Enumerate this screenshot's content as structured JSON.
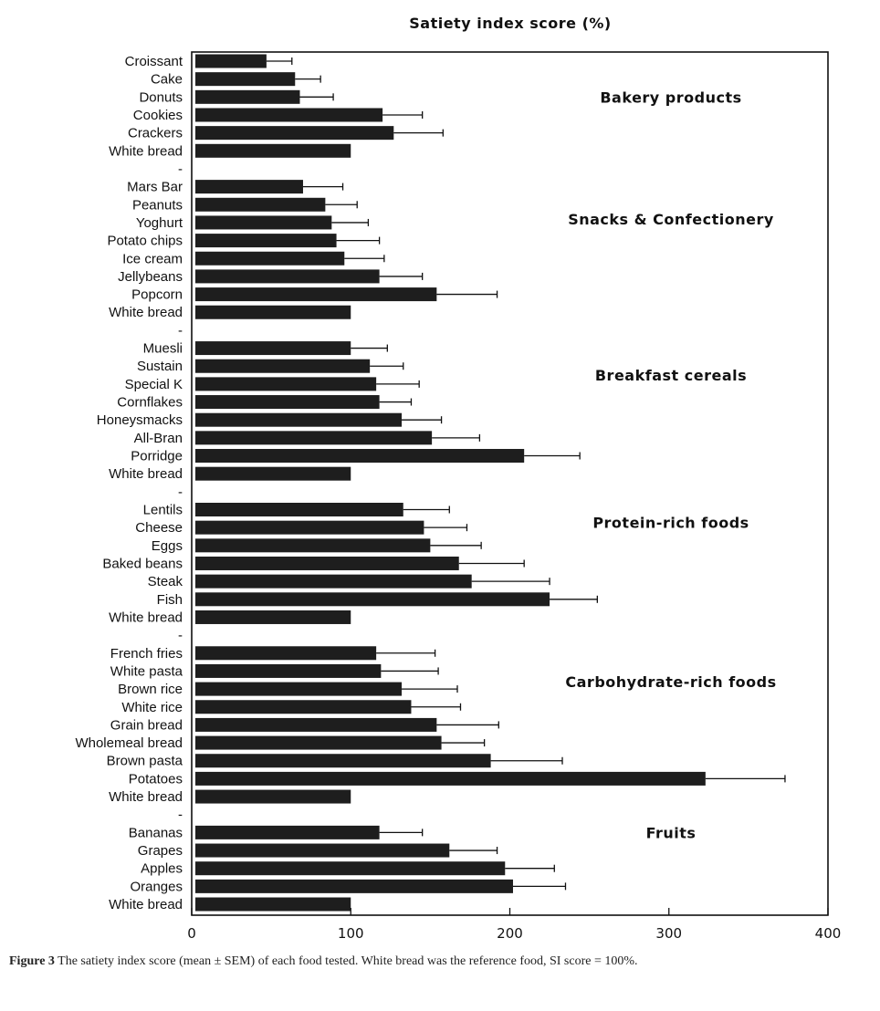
{
  "chart_data": {
    "type": "bar",
    "orientation": "horizontal",
    "title": "Satiety index score (%)",
    "xlim": [
      0,
      400
    ],
    "xticks": [
      "0",
      "100",
      "200",
      "300",
      "400"
    ],
    "grid": false,
    "error_bars": "mean ± SEM (one-sided, right)",
    "bar_color": "#1e1e1e",
    "groups": [
      {
        "name": "Bakery products",
        "items": [
          {
            "label": "Croissant",
            "value": 47,
            "sem": 16
          },
          {
            "label": "Cake",
            "value": 65,
            "sem": 16
          },
          {
            "label": "Donuts",
            "value": 68,
            "sem": 21
          },
          {
            "label": "Cookies",
            "value": 120,
            "sem": 25
          },
          {
            "label": "Crackers",
            "value": 127,
            "sem": 31
          },
          {
            "label": "White bread",
            "value": 100,
            "sem": 0
          }
        ]
      },
      {
        "name": "Snacks & Confectionery",
        "items": [
          {
            "label": "Mars Bar",
            "value": 70,
            "sem": 25
          },
          {
            "label": "Peanuts",
            "value": 84,
            "sem": 20
          },
          {
            "label": "Yoghurt",
            "value": 88,
            "sem": 23
          },
          {
            "label": "Potato chips",
            "value": 91,
            "sem": 27
          },
          {
            "label": "Ice cream",
            "value": 96,
            "sem": 25
          },
          {
            "label": "Jellybeans",
            "value": 118,
            "sem": 27
          },
          {
            "label": "Popcorn",
            "value": 154,
            "sem": 38
          },
          {
            "label": "White bread",
            "value": 100,
            "sem": 0
          }
        ]
      },
      {
        "name": "Breakfast cereals",
        "items": [
          {
            "label": "Muesli",
            "value": 100,
            "sem": 23
          },
          {
            "label": "Sustain",
            "value": 112,
            "sem": 21
          },
          {
            "label": "Special K",
            "value": 116,
            "sem": 27
          },
          {
            "label": "Cornflakes",
            "value": 118,
            "sem": 20
          },
          {
            "label": "Honeysmacks",
            "value": 132,
            "sem": 25
          },
          {
            "label": "All-Bran",
            "value": 151,
            "sem": 30
          },
          {
            "label": "Porridge",
            "value": 209,
            "sem": 35
          },
          {
            "label": "White bread",
            "value": 100,
            "sem": 0
          }
        ]
      },
      {
        "name": "Protein-rich foods",
        "items": [
          {
            "label": "Lentils",
            "value": 133,
            "sem": 29
          },
          {
            "label": "Cheese",
            "value": 146,
            "sem": 27
          },
          {
            "label": "Eggs",
            "value": 150,
            "sem": 32
          },
          {
            "label": "Baked beans",
            "value": 168,
            "sem": 41
          },
          {
            "label": "Steak",
            "value": 176,
            "sem": 49
          },
          {
            "label": "Fish",
            "value": 225,
            "sem": 30
          },
          {
            "label": "White bread",
            "value": 100,
            "sem": 0
          }
        ]
      },
      {
        "name": "Carbohydrate-rich foods",
        "items": [
          {
            "label": "French fries",
            "value": 116,
            "sem": 37
          },
          {
            "label": "White pasta",
            "value": 119,
            "sem": 36
          },
          {
            "label": "Brown rice",
            "value": 132,
            "sem": 35
          },
          {
            "label": "White rice",
            "value": 138,
            "sem": 31
          },
          {
            "label": "Grain bread",
            "value": 154,
            "sem": 39
          },
          {
            "label": "Wholemeal bread",
            "value": 157,
            "sem": 27
          },
          {
            "label": "Brown pasta",
            "value": 188,
            "sem": 45
          },
          {
            "label": "Potatoes",
            "value": 323,
            "sem": 50
          },
          {
            "label": "White bread",
            "value": 100,
            "sem": 0
          }
        ]
      },
      {
        "name": "Fruits",
        "items": [
          {
            "label": "Bananas",
            "value": 118,
            "sem": 27
          },
          {
            "label": "Grapes",
            "value": 162,
            "sem": 30
          },
          {
            "label": "Apples",
            "value": 197,
            "sem": 31
          },
          {
            "label": "Oranges",
            "value": 202,
            "sem": 33
          },
          {
            "label": "White bread",
            "value": 100,
            "sem": 0
          }
        ]
      }
    ],
    "group_separator": "-"
  },
  "caption": {
    "label": "Figure 3",
    "text": "The satiety index score (mean ± SEM) of each food tested. White bread was the reference food, SI score = 100%."
  }
}
